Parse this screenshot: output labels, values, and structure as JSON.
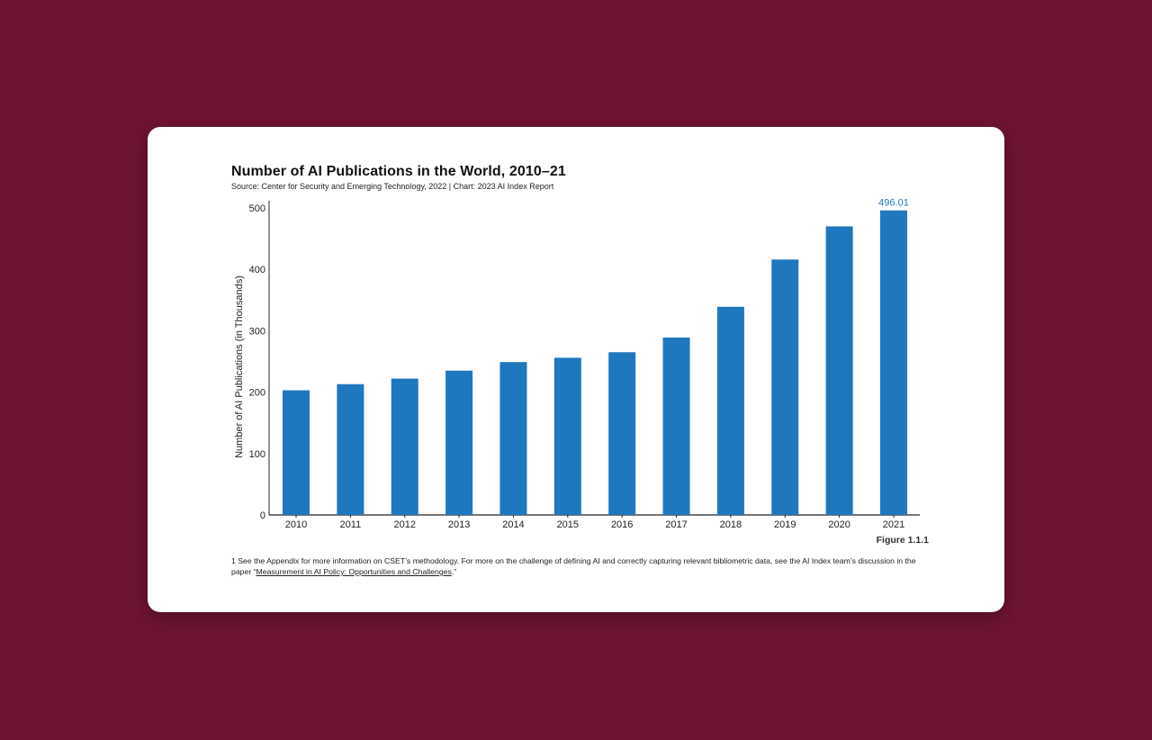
{
  "colors": {
    "background": "#6d1430",
    "card": "#ffffff",
    "bar": "#1f77bd",
    "label": "#1f77bd"
  },
  "figure_label": "Figure 1.1.1",
  "footnote": {
    "prefix": "1 See the Appendix for more information on CSET’s methodology. For more on the challenge of defining AI and correctly capturing relevant bibliometric data, see the AI Index team’s discussion in the paper “",
    "link_text": "Measurement in AI Policy: Opportunities and Challenges",
    "suffix": ".”"
  },
  "chart_data": {
    "type": "bar",
    "title": "Number of AI Publications in the World, 2010–21",
    "subtitle": "Source: Center for Security and Emerging Technology, 2022 | Chart: 2023 AI Index Report",
    "xlabel": "",
    "ylabel": "Number of AI Publications (in Thousands)",
    "categories": [
      "2010",
      "2011",
      "2012",
      "2013",
      "2014",
      "2015",
      "2016",
      "2017",
      "2018",
      "2019",
      "2020",
      "2021"
    ],
    "values": [
      203,
      213,
      222,
      235,
      249,
      256,
      265,
      289,
      339,
      416,
      470,
      496.01
    ],
    "data_labels": [
      null,
      null,
      null,
      null,
      null,
      null,
      null,
      null,
      null,
      null,
      null,
      "496.01"
    ],
    "ylim": [
      0,
      500
    ],
    "yticks": [
      0,
      100,
      200,
      300,
      400,
      500
    ],
    "grid": false,
    "legend": "none"
  }
}
